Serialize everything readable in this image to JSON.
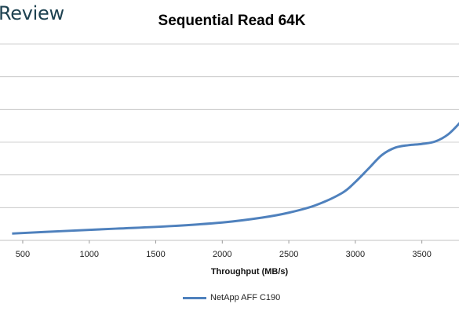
{
  "brand": {
    "text": "Review"
  },
  "chart_data": {
    "type": "line",
    "title": "Sequential Read 64K",
    "xlabel": "Throughput (MB/s)",
    "ylabel": "",
    "xlim": [
      400,
      3850
    ],
    "ylim": [
      0,
      16
    ],
    "x_ticks": [
      500,
      1000,
      1500,
      2000,
      2500,
      3000,
      3500
    ],
    "grid": true,
    "legend_position": "bottom",
    "colors": {
      "series": "#4f81bd",
      "grid": "#c0c0c0"
    },
    "series": [
      {
        "name": "NetApp AFF C190",
        "x": [
          420,
          800,
          1200,
          1600,
          2000,
          2300,
          2500,
          2700,
          2900,
          3000,
          3100,
          3200,
          3300,
          3400,
          3500,
          3600,
          3700,
          3800,
          3850
        ],
        "y": [
          0.3,
          0.5,
          0.7,
          0.9,
          1.2,
          1.6,
          2.0,
          2.6,
          3.6,
          4.5,
          5.6,
          6.7,
          7.3,
          7.5,
          7.6,
          7.8,
          8.4,
          9.5,
          10.2
        ]
      }
    ]
  }
}
